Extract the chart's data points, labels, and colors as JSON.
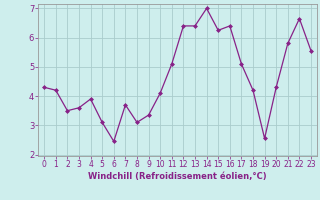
{
  "x": [
    0,
    1,
    2,
    3,
    4,
    5,
    6,
    7,
    8,
    9,
    10,
    11,
    12,
    13,
    14,
    15,
    16,
    17,
    18,
    19,
    20,
    21,
    22,
    23
  ],
  "y": [
    4.3,
    4.2,
    3.5,
    3.6,
    3.9,
    3.1,
    2.45,
    3.7,
    3.1,
    3.35,
    4.1,
    5.1,
    6.4,
    6.4,
    7.0,
    6.25,
    6.4,
    5.1,
    4.2,
    2.55,
    4.3,
    5.8,
    6.65,
    5.55
  ],
  "line_color": "#882288",
  "marker": "D",
  "marker_size": 2.0,
  "bg_color": "#ceeeed",
  "grid_color": "#aacccc",
  "xlabel": "Windchill (Refroidissement éolien,°C)",
  "xlabel_color": "#882288",
  "tick_color": "#882288",
  "ylim": [
    2,
    7
  ],
  "yticks": [
    2,
    3,
    4,
    5,
    6,
    7
  ],
  "xlim": [
    -0.5,
    23.5
  ],
  "xticks": [
    0,
    1,
    2,
    3,
    4,
    5,
    6,
    7,
    8,
    9,
    10,
    11,
    12,
    13,
    14,
    15,
    16,
    17,
    18,
    19,
    20,
    21,
    22,
    23
  ],
  "line_width": 0.9,
  "tick_fontsize": 5.5,
  "xlabel_fontsize": 6.0
}
